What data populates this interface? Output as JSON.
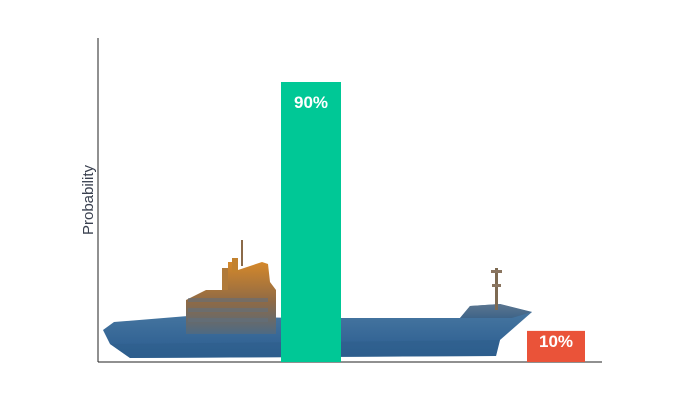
{
  "chart_data": {
    "type": "bar",
    "categories": [
      "",
      ""
    ],
    "values": [
      90,
      10
    ],
    "data_labels": [
      "90%",
      "10%"
    ],
    "ylabel": "Probability",
    "xlabel": "",
    "title": "",
    "ylim": [
      0,
      100
    ],
    "grid": false,
    "legend": "none",
    "colors": {
      "bar_1": "#00c896",
      "bar_2": "#ea5339"
    }
  },
  "background_image": {
    "icon": "cargo-ship-icon"
  }
}
